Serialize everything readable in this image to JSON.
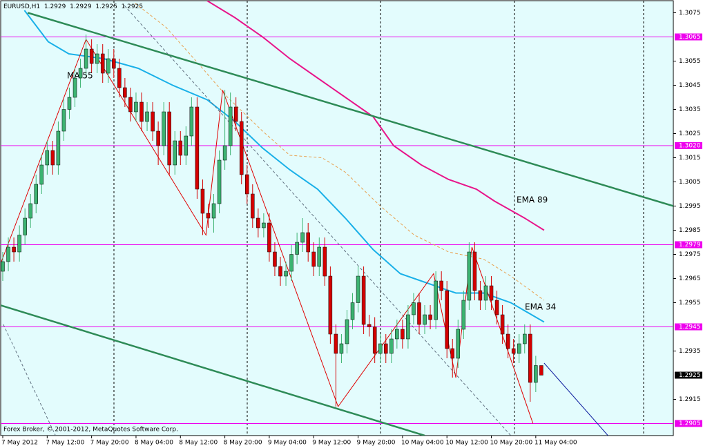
{
  "chart_data": {
    "type": "candlestick",
    "title": "EURUSD,H1",
    "footer": "Forex Broker, © 2001-2012, MetaQuotes Software Corp.",
    "categories": [
      "7 May 2012",
      null,
      null,
      null,
      null,
      null,
      null,
      null,
      "7 May 12:00",
      null,
      null,
      null,
      null,
      null,
      null,
      null,
      "7 May 20:00",
      null,
      null,
      null,
      null,
      null,
      null,
      null,
      "8 May 04:00",
      null,
      null,
      null,
      null,
      null,
      null,
      null,
      "8 May 12:00",
      null,
      null,
      null,
      null,
      null,
      null,
      null,
      "8 May 20:00",
      null,
      null,
      null,
      null,
      null,
      null,
      null,
      "9 May 04:00",
      null,
      null,
      null,
      null,
      null,
      null,
      null,
      "9 May 12:00",
      null,
      null,
      null,
      null,
      null,
      null,
      null,
      "9 May 20:00",
      null,
      null,
      null,
      null,
      null,
      null,
      null,
      "10 May 04:00",
      null,
      null,
      null,
      null,
      null,
      null,
      null,
      "10 May 12:00",
      null,
      null,
      null,
      null,
      null,
      null,
      null,
      "10 May 20:00",
      null,
      null,
      null,
      null,
      null,
      null,
      null,
      "11 May 04:00",
      null
    ],
    "open": [
      1.2968,
      1.2972,
      1.2978,
      1.2976,
      1.2983,
      1.299,
      1.2996,
      1.3004,
      1.3012,
      1.3018,
      1.3012,
      1.3026,
      1.3035,
      1.304,
      1.3048,
      1.3052,
      1.306,
      1.3054,
      1.3058,
      1.305,
      1.3056,
      1.3052,
      1.3044,
      1.304,
      1.3034,
      1.3038,
      1.303,
      1.3034,
      1.3026,
      1.302,
      1.3034,
      1.3012,
      1.3022,
      1.3016,
      1.3024,
      1.3036,
      1.3002,
      1.2992,
      1.299,
      1.2996,
      1.3014,
      1.302,
      1.3036,
      1.303,
      1.3008,
      1.3,
      1.299,
      1.2986,
      1.2988,
      1.2976,
      1.297,
      1.2966,
      1.2968,
      1.2975,
      1.298,
      1.2984,
      1.2976,
      1.297,
      1.2978,
      1.2966,
      1.2942,
      1.2934,
      1.2938,
      1.2948,
      1.2955,
      1.2966,
      1.2946,
      1.2945,
      1.2934,
      1.2938,
      1.2934,
      1.294,
      1.2944,
      1.294,
      1.295,
      1.2955,
      1.2946,
      1.295,
      1.2948,
      1.2964,
      1.296,
      1.2936,
      1.2932,
      1.2944,
      1.2956,
      1.2976,
      1.296,
      1.2956,
      1.2962,
      1.2956,
      1.295,
      1.2942,
      1.2936,
      1.2934,
      1.2938,
      1.2942,
      1.2922,
      1.2929
    ],
    "high": [
      1.2976,
      1.2982,
      1.2982,
      1.2987,
      1.2994,
      1.3,
      1.3008,
      1.3016,
      1.3022,
      1.3022,
      1.303,
      1.3039,
      1.3044,
      1.3052,
      1.3056,
      1.3066,
      1.3064,
      1.3062,
      1.3062,
      1.306,
      1.306,
      1.3056,
      1.3048,
      1.3044,
      1.3042,
      1.3042,
      1.3038,
      1.3038,
      1.303,
      1.3038,
      1.3038,
      1.3026,
      1.3026,
      1.3028,
      1.304,
      1.304,
      1.3006,
      1.2996,
      1.3,
      1.3018,
      1.3043,
      1.3042,
      1.304,
      1.3034,
      1.3012,
      1.3004,
      1.2994,
      1.2992,
      1.2992,
      1.298,
      1.2974,
      1.2972,
      1.2979,
      1.2984,
      1.299,
      1.2988,
      1.298,
      1.2982,
      1.2982,
      1.297,
      1.2946,
      1.2942,
      1.2952,
      1.2959,
      1.297,
      1.297,
      1.295,
      1.2949,
      1.2942,
      1.2942,
      1.2944,
      1.2948,
      1.2948,
      1.2954,
      1.2959,
      1.2959,
      1.2954,
      1.2954,
      1.2968,
      1.2968,
      1.2964,
      1.294,
      1.2948,
      1.296,
      1.298,
      1.298,
      1.2964,
      1.2966,
      1.2966,
      1.296,
      1.2954,
      1.2946,
      1.294,
      1.2942,
      1.2946,
      1.2946,
      1.2933,
      1.2929
    ],
    "low": [
      1.2964,
      1.2968,
      1.2972,
      1.2972,
      1.2979,
      1.2986,
      1.2992,
      1.3,
      1.3008,
      1.3008,
      1.3008,
      1.3022,
      1.3031,
      1.3036,
      1.3044,
      1.3048,
      1.305,
      1.305,
      1.3046,
      1.3046,
      1.3048,
      1.304,
      1.3036,
      1.303,
      1.303,
      1.3026,
      1.3026,
      1.3022,
      1.3012,
      1.3016,
      1.3008,
      1.3008,
      1.3012,
      1.3012,
      1.302,
      1.2998,
      1.2983,
      1.2986,
      1.2984,
      1.2992,
      1.301,
      1.3016,
      1.3026,
      1.3004,
      1.2996,
      1.2986,
      1.2982,
      1.2982,
      1.2972,
      1.2966,
      1.2962,
      1.2962,
      1.2964,
      1.2971,
      1.2976,
      1.2972,
      1.2966,
      1.2966,
      1.2962,
      1.2938,
      1.2912,
      1.293,
      1.2934,
      1.2944,
      1.2951,
      1.2942,
      1.2941,
      1.293,
      1.293,
      1.293,
      1.293,
      1.2936,
      1.2936,
      1.2936,
      1.2946,
      1.2942,
      1.2942,
      1.2944,
      1.2944,
      1.2956,
      1.2932,
      1.2924,
      1.2928,
      1.294,
      1.2952,
      1.2956,
      1.2952,
      1.2952,
      1.2952,
      1.2946,
      1.2938,
      1.2932,
      1.293,
      1.293,
      1.2934,
      1.2914,
      1.2918,
      1.2925
    ],
    "close": [
      1.2972,
      1.2978,
      1.2976,
      1.2983,
      1.299,
      1.2996,
      1.3004,
      1.3012,
      1.3018,
      1.3012,
      1.3026,
      1.3035,
      1.304,
      1.3048,
      1.3052,
      1.306,
      1.3054,
      1.3058,
      1.305,
      1.3056,
      1.3052,
      1.3044,
      1.304,
      1.3034,
      1.3038,
      1.303,
      1.3034,
      1.3026,
      1.302,
      1.3034,
      1.3012,
      1.3022,
      1.3016,
      1.3024,
      1.3036,
      1.3002,
      1.2992,
      1.299,
      1.2996,
      1.3014,
      1.302,
      1.3036,
      1.303,
      1.3008,
      1.3,
      1.299,
      1.2986,
      1.2988,
      1.2976,
      1.297,
      1.2966,
      1.2968,
      1.2975,
      1.298,
      1.2984,
      1.2976,
      1.297,
      1.2978,
      1.2966,
      1.2942,
      1.2934,
      1.2938,
      1.2948,
      1.2955,
      1.2966,
      1.2946,
      1.2945,
      1.2934,
      1.2938,
      1.2934,
      1.294,
      1.2944,
      1.294,
      1.295,
      1.2955,
      1.2946,
      1.295,
      1.2948,
      1.2964,
      1.296,
      1.2936,
      1.2932,
      1.2944,
      1.2956,
      1.2976,
      1.296,
      1.2956,
      1.2962,
      1.2956,
      1.295,
      1.2942,
      1.2936,
      1.2934,
      1.2938,
      1.2942,
      1.2922,
      1.2929,
      1.2925
    ],
    "up_color": "#3cb371",
    "down_color": "#d40000",
    "background": "#e3fcfd",
    "ylim": [
      1.29,
      1.308
    ],
    "yticks": [
      1.3075,
      1.3055,
      1.3045,
      1.3035,
      1.3025,
      1.3015,
      1.3005,
      1.2995,
      1.2985,
      1.2975,
      1.2965,
      1.2955,
      1.2935,
      1.2915
    ],
    "levels": [
      1.3065,
      {
        "value": 1.302,
        "label": "1.3020"
      },
      1.2979,
      1.2945,
      1.2905
    ],
    "level_color": "#ee00ee",
    "overlays": [
      {
        "label": "EMA 89",
        "color": "#e8158a",
        "width": 2,
        "x": [
          36.8,
          41.8,
          46.8,
          51.7,
          56.7,
          61.7,
          66.7,
          70.4,
          75.4,
          80.3,
          85.3,
          88.6,
          94,
          97.5
        ],
        "y": [
          1.308,
          1.3073,
          1.3065,
          1.3056,
          1.3048,
          1.304,
          1.3032,
          1.302,
          1.3012,
          1.3006,
          1.3002,
          1.2997,
          1.299,
          1.2985
        ]
      },
      {
        "label": "EMA 34",
        "color": "#1ab0e8",
        "width": 2,
        "x": [
          3.9,
          8.2,
          11.9,
          18.2,
          24.4,
          30.6,
          36.8,
          41.8,
          46.8,
          51.7,
          56.7,
          61.7,
          66.7,
          71.6,
          76.6,
          81.6,
          86.6,
          91.5,
          97.5
        ],
        "y": [
          1.3076,
          1.3063,
          1.3058,
          1.3056,
          1.3052,
          1.3045,
          1.3039,
          1.303,
          1.3019,
          1.301,
          1.3002,
          1.299,
          1.2977,
          1.2967,
          1.2963,
          1.2959,
          1.2959,
          1.2955,
          1.2947
        ]
      },
      {
        "label": "MA 55",
        "color": "#e8a050",
        "width": 1,
        "dash": true,
        "x": [
          23.8,
          29.4,
          35.6,
          40.5,
          46.8,
          51.7,
          57.5,
          61.7,
          68,
          74.1,
          80.3,
          86.6,
          91.5,
          97.5
        ],
        "y": [
          1.3079,
          1.3069,
          1.3053,
          1.304,
          1.3026,
          1.3016,
          1.3015,
          1.3009,
          1.2995,
          1.2983,
          1.2976,
          1.2973,
          1.2966,
          1.2956
        ]
      },
      {
        "color": "#2e8b57",
        "width": 2.5,
        "x": [
          4.5,
          120.8
        ],
        "y": [
          1.3075,
          1.2995
        ]
      },
      {
        "color": "#2e8b57",
        "width": 2.5,
        "x": [
          -0.5,
          76
        ],
        "y": [
          1.2954,
          1.29
        ]
      },
      {
        "color": "#607080",
        "width": 1,
        "dash": true,
        "x": [
          21.9,
          91.5
        ],
        "y": [
          1.3078,
          1.29
        ]
      },
      {
        "color": "#607080",
        "width": 1,
        "dash": true,
        "x": [
          0.1,
          9.5
        ],
        "y": [
          1.2946,
          1.29
        ]
      },
      {
        "color": "#1020a0",
        "width": 1,
        "x": [
          97.5,
          109
        ],
        "y": [
          1.293,
          1.29
        ]
      },
      {
        "color": "#e00000",
        "width": 1,
        "x": [
          -0.25,
          15,
          36.6,
          39.6,
          60.4,
          77.6,
          81.6,
          84.5,
          95.5
        ],
        "y": [
          1.2972,
          1.3064,
          1.2983,
          1.3043,
          1.2912,
          1.2967,
          1.2924,
          1.2978,
          1.2905
        ]
      }
    ]
  }
}
